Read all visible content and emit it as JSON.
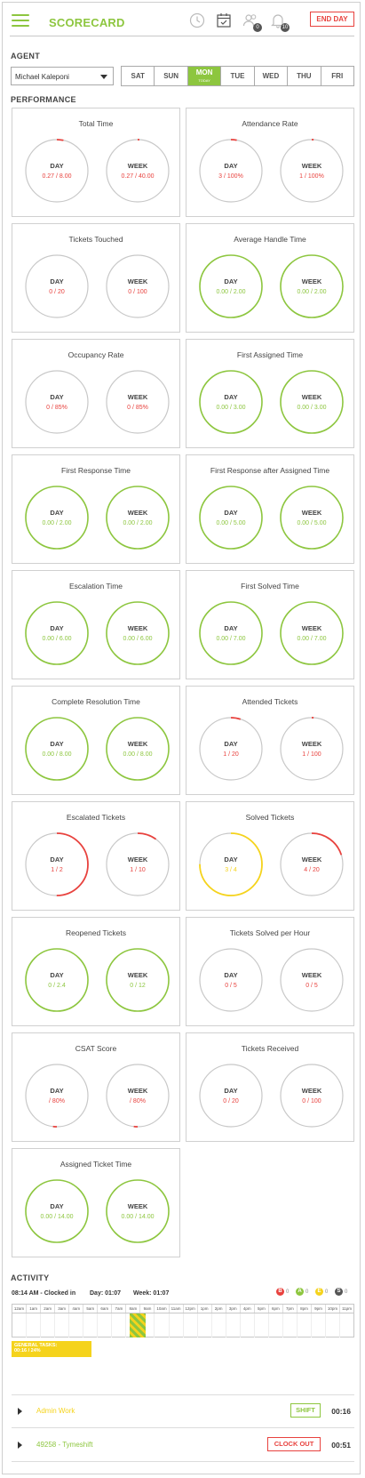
{
  "header": {
    "title": "SCORECARD",
    "end_day_label": "END DAY",
    "icons": [
      "menu-icon",
      "clock-icon",
      "calendar-check-icon",
      "users-icon",
      "bell-icon"
    ],
    "users_badge": "0",
    "bell_badge": "10"
  },
  "agent": {
    "section_label": "AGENT",
    "selected": "Michael Kaleponi",
    "days": [
      {
        "label": "SAT"
      },
      {
        "label": "SUN"
      },
      {
        "label": "MON",
        "sub": "TODAY",
        "active": true
      },
      {
        "label": "TUE"
      },
      {
        "label": "WED"
      },
      {
        "label": "THU"
      },
      {
        "label": "FRI"
      }
    ]
  },
  "performance": {
    "section_label": "PERFORMANCE",
    "colors": {
      "red": "#e8423e",
      "green": "#8dc63f",
      "yellow": "#f5d31c",
      "grey": "#c8c8c8"
    },
    "cards": [
      {
        "title": "Total Time",
        "day": {
          "label": "DAY",
          "value": "0.27 / 8.00",
          "color": "red",
          "fraction": 0.034
        },
        "week": {
          "label": "WEEK",
          "value": "0.27 / 40.00",
          "color": "red",
          "fraction": 0.007
        }
      },
      {
        "title": "Attendance Rate",
        "day": {
          "label": "DAY",
          "value": "3 / 100%",
          "color": "red",
          "fraction": 0.03
        },
        "week": {
          "label": "WEEK",
          "value": "1 / 100%",
          "color": "red",
          "fraction": 0.01
        }
      },
      {
        "title": "Tickets Touched",
        "day": {
          "label": "DAY",
          "value": "0 / 20",
          "color": "red",
          "fraction": 0
        },
        "week": {
          "label": "WEEK",
          "value": "0 / 100",
          "color": "red",
          "fraction": 0
        }
      },
      {
        "title": "Average Handle Time",
        "day": {
          "label": "DAY",
          "value": "0.00 / 2.00",
          "color": "green",
          "fraction": 0
        },
        "week": {
          "label": "WEEK",
          "value": "0.00 / 2.00",
          "color": "green",
          "fraction": 0
        }
      },
      {
        "title": "Occupancy Rate",
        "day": {
          "label": "DAY",
          "value": "0 / 85%",
          "color": "red",
          "fraction": 0
        },
        "week": {
          "label": "WEEK",
          "value": "0 / 85%",
          "color": "red",
          "fraction": 0
        }
      },
      {
        "title": "First Assigned Time",
        "day": {
          "label": "DAY",
          "value": "0.00 / 3.00",
          "color": "green",
          "fraction": 0
        },
        "week": {
          "label": "WEEK",
          "value": "0.00 / 3.00",
          "color": "green",
          "fraction": 0
        }
      },
      {
        "title": "First Response Time",
        "day": {
          "label": "DAY",
          "value": "0.00 / 2.00",
          "color": "green",
          "fraction": 0
        },
        "week": {
          "label": "WEEK",
          "value": "0.00 / 2.00",
          "color": "green",
          "fraction": 0
        }
      },
      {
        "title": "First Response after Assigned Time",
        "day": {
          "label": "DAY",
          "value": "0.00 / 5.00",
          "color": "green",
          "fraction": 0
        },
        "week": {
          "label": "WEEK",
          "value": "0.00 / 5.00",
          "color": "green",
          "fraction": 0
        }
      },
      {
        "title": "Escalation Time",
        "day": {
          "label": "DAY",
          "value": "0.00 / 6.00",
          "color": "green",
          "fraction": 0
        },
        "week": {
          "label": "WEEK",
          "value": "0.00 / 6.00",
          "color": "green",
          "fraction": 0
        }
      },
      {
        "title": "First Solved Time",
        "day": {
          "label": "DAY",
          "value": "0.00 / 7.00",
          "color": "green",
          "fraction": 0
        },
        "week": {
          "label": "WEEK",
          "value": "0.00 / 7.00",
          "color": "green",
          "fraction": 0
        }
      },
      {
        "title": "Complete Resolution Time",
        "day": {
          "label": "DAY",
          "value": "0.00 / 8.00",
          "color": "green",
          "fraction": 0
        },
        "week": {
          "label": "WEEK",
          "value": "0.00 / 8.00",
          "color": "green",
          "fraction": 0
        }
      },
      {
        "title": "Attended Tickets",
        "day": {
          "label": "DAY",
          "value": "1 / 20",
          "color": "red",
          "fraction": 0.05
        },
        "week": {
          "label": "WEEK",
          "value": "1 / 100",
          "color": "red",
          "fraction": 0.01
        }
      },
      {
        "title": "Escalated Tickets",
        "day": {
          "label": "DAY",
          "value": "1 / 2",
          "color": "red",
          "fraction": 0.5
        },
        "week": {
          "label": "WEEK",
          "value": "1 / 10",
          "color": "red",
          "fraction": 0.1
        }
      },
      {
        "title": "Solved Tickets",
        "day": {
          "label": "DAY",
          "value": "3 / 4",
          "color": "yellow",
          "fraction": 0.75
        },
        "week": {
          "label": "WEEK",
          "value": "4 / 20",
          "color": "red",
          "fraction": 0.2
        }
      },
      {
        "title": "Reopened Tickets",
        "day": {
          "label": "DAY",
          "value": "0 / 2.4",
          "color": "green",
          "fraction": 0
        },
        "week": {
          "label": "WEEK",
          "value": "0 / 12",
          "color": "green",
          "fraction": 0
        }
      },
      {
        "title": "Tickets Solved per Hour",
        "day": {
          "label": "DAY",
          "value": "0 / 5",
          "color": "red",
          "fraction": 0
        },
        "week": {
          "label": "WEEK",
          "value": "0 / 5",
          "color": "red",
          "fraction": 0
        }
      },
      {
        "title": "CSAT Score",
        "day": {
          "label": "DAY",
          "value": "/ 80%",
          "color": "red",
          "fraction": 0.02,
          "start": 0.5
        },
        "week": {
          "label": "WEEK",
          "value": "/ 80%",
          "color": "red",
          "fraction": 0.02,
          "start": 0.5
        }
      },
      {
        "title": "Tickets Received",
        "day": {
          "label": "DAY",
          "value": "0 / 20",
          "color": "red",
          "fraction": 0
        },
        "week": {
          "label": "WEEK",
          "value": "0 / 100",
          "color": "red",
          "fraction": 0
        }
      },
      {
        "title": "Assigned Ticket Time",
        "day": {
          "label": "DAY",
          "value": "0.00 / 14.00",
          "color": "green",
          "fraction": 0
        },
        "week": {
          "label": "WEEK",
          "value": "0.00 / 14.00",
          "color": "green",
          "fraction": 0
        }
      }
    ]
  },
  "activity": {
    "section_label": "ACTIVITY",
    "clocked_in": "08:14 AM - Clocked in",
    "day_total": "Day: 01:07",
    "week_total": "Week: 01:07",
    "legend": [
      {
        "letter": "B",
        "count": "0",
        "color": "#e8423e"
      },
      {
        "letter": "A",
        "count": "0",
        "color": "#8dc63f"
      },
      {
        "letter": "E",
        "count": "0",
        "color": "#f5d31c"
      },
      {
        "letter": "S",
        "count": "0",
        "color": "#555555"
      }
    ],
    "hours": [
      "12am",
      "1am",
      "2am",
      "3am",
      "4am",
      "5am",
      "6am",
      "7am",
      "8am",
      "9am",
      "10am",
      "11am",
      "12pm",
      "1pm",
      "2pm",
      "3pm",
      "4pm",
      "5pm",
      "6pm",
      "7pm",
      "8pm",
      "9pm",
      "10pm",
      "11pm"
    ],
    "shift_start_hour": 8.23,
    "shift_end_hour": 9.4,
    "general_tasks_label": "GENERAL TASKS:",
    "general_tasks_value": "00:16 / 24%",
    "tasks": [
      {
        "name": "Admin Work",
        "name_color": "#f5d31c",
        "button": "SHIFT",
        "button_color": "#8dc63f",
        "time": "00:16"
      },
      {
        "name": "49258 - Tymeshift",
        "name_color": "#8dc63f",
        "button": "CLOCK OUT",
        "button_color": "#e8423e",
        "time": "00:51"
      }
    ]
  }
}
